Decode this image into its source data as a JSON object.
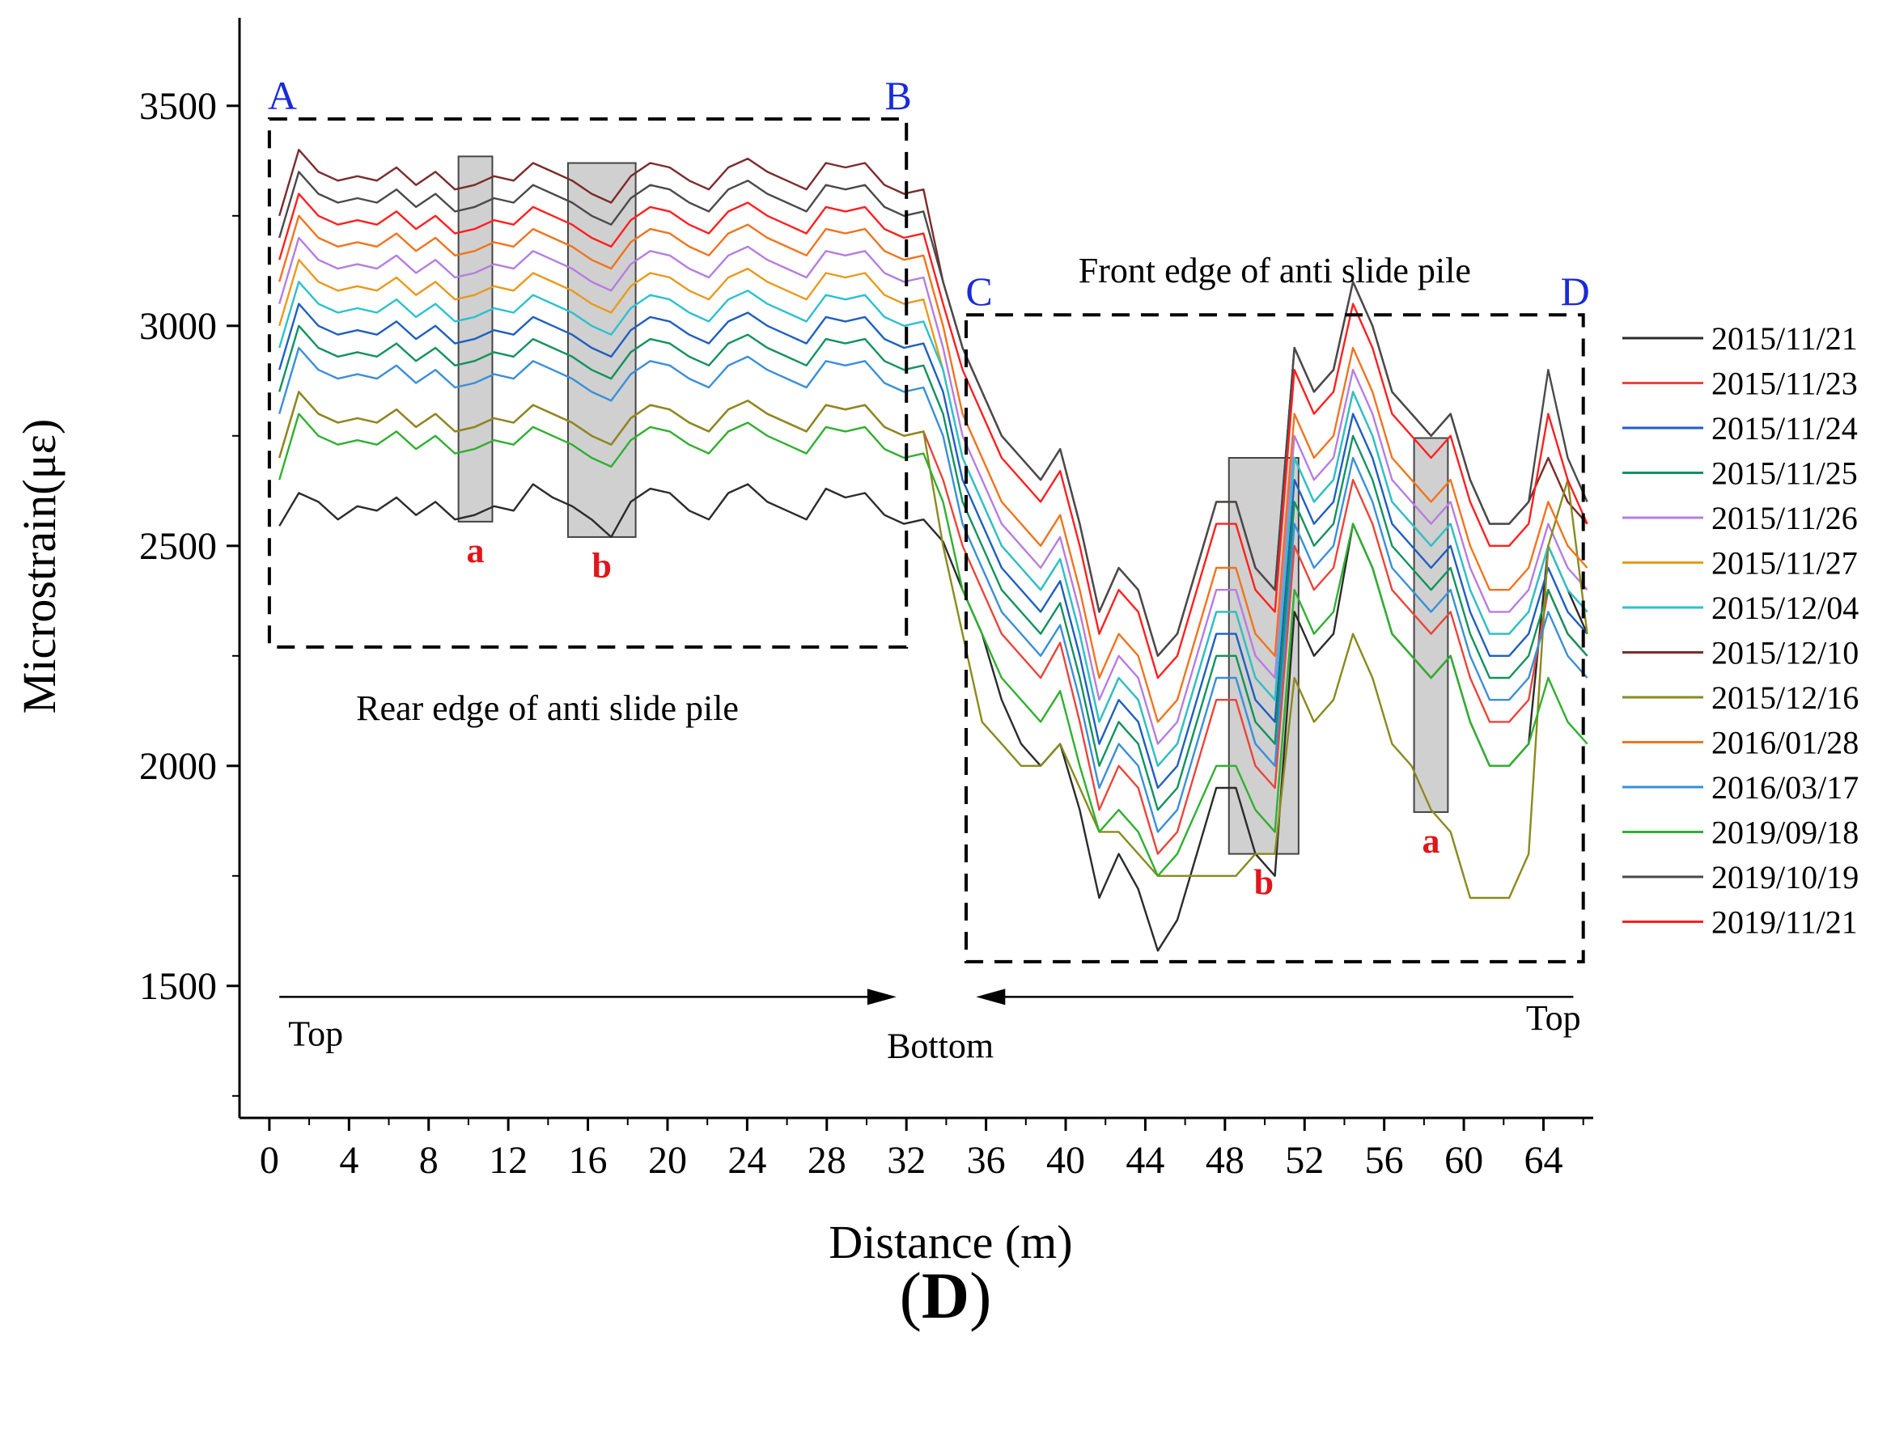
{
  "figure_label": {
    "open": "(",
    "letter": "D",
    "close": ")"
  },
  "chart_data": {
    "type": "line",
    "xlabel": "Distance (m)",
    "ylabel": "Microstrain(με)",
    "xlim": [
      -1.5,
      66.5
    ],
    "ylim": [
      1200,
      3700
    ],
    "xticks": [
      0,
      4,
      8,
      12,
      16,
      20,
      24,
      28,
      32,
      36,
      40,
      44,
      48,
      52,
      56,
      60,
      64
    ],
    "yticks": [
      1500,
      2000,
      2500,
      3000,
      3500
    ],
    "legend_position": "right",
    "regions": [
      {
        "label_left": "A",
        "label_right": "B",
        "x0": 0,
        "x1": 32,
        "y0": 2270,
        "y1": 3470,
        "caption": "Rear edge of anti slide pile"
      },
      {
        "label_left": "C",
        "label_right": "D",
        "x0": 35,
        "x1": 66,
        "y0": 1555,
        "y1": 3025,
        "caption": "Front edge of anti slide pile"
      }
    ],
    "highlights": [
      {
        "label": "a",
        "x0": 9.5,
        "x1": 11.2,
        "y0": 2555,
        "y1": 3385
      },
      {
        "label": "b",
        "x0": 15.0,
        "x1": 18.4,
        "y0": 2520,
        "y1": 3370
      },
      {
        "label": "b",
        "x0": 48.2,
        "x1": 51.7,
        "y0": 1800,
        "y1": 2700
      },
      {
        "label": "a",
        "x0": 57.5,
        "x1": 59.2,
        "y0": 1895,
        "y1": 2745
      }
    ],
    "arrows": [
      {
        "label": "Top",
        "from": 0.5,
        "to": 31.5,
        "y": 1475
      },
      {
        "label": "Bottom",
        "from": 35.5,
        "to": 65.5,
        "y": 1475
      },
      {
        "label": "Top",
        "x": 64.5,
        "y": 1410
      }
    ],
    "series": [
      {
        "name": "2015/11/21",
        "color": "#2b2b2b",
        "values": [
          2545,
          2620,
          2600,
          2560,
          2590,
          2580,
          2610,
          2570,
          2600,
          2560,
          2570,
          2590,
          2580,
          2640,
          2610,
          2590,
          2560,
          2520,
          2600,
          2630,
          2620,
          2580,
          2560,
          2620,
          2640,
          2600,
          2580,
          2560,
          2630,
          2610,
          2620,
          2570,
          2550,
          2560,
          2510,
          2400,
          2300,
          2150,
          2050,
          2000,
          2050,
          1900,
          1700,
          1800,
          1720,
          1580,
          1650,
          1800,
          1950,
          1950,
          1800,
          1750,
          2350,
          2250,
          2300,
          2550,
          2450,
          2300,
          2250,
          2200,
          2250,
          2100,
          2000,
          2000,
          2050,
          2500,
          2400,
          2300
        ]
      },
      {
        "name": "2015/11/23",
        "color": "#e8463b",
        "values": [
          2700,
          2850,
          2800,
          2780,
          2790,
          2780,
          2810,
          2770,
          2800,
          2760,
          2770,
          2790,
          2780,
          2820,
          2800,
          2780,
          2750,
          2730,
          2790,
          2820,
          2810,
          2780,
          2760,
          2810,
          2830,
          2800,
          2780,
          2760,
          2820,
          2810,
          2820,
          2770,
          2750,
          2760,
          2650,
          2500,
          2400,
          2300,
          2250,
          2200,
          2280,
          2100,
          1900,
          2000,
          1950,
          1800,
          1850,
          2000,
          2150,
          2150,
          2000,
          1950,
          2500,
          2400,
          2450,
          2650,
          2550,
          2400,
          2350,
          2300,
          2350,
          2200,
          2100,
          2100,
          2150,
          2400,
          2300,
          2250
        ]
      },
      {
        "name": "2015/11/24",
        "color": "#1f5fbf",
        "values": [
          2900,
          3050,
          3000,
          2980,
          2990,
          2980,
          3010,
          2970,
          3000,
          2960,
          2970,
          2990,
          2980,
          3020,
          3000,
          2980,
          2950,
          2930,
          2990,
          3020,
          3010,
          2980,
          2960,
          3010,
          3030,
          3000,
          2980,
          2960,
          3020,
          3010,
          3020,
          2970,
          2950,
          2960,
          2850,
          2650,
          2550,
          2450,
          2400,
          2350,
          2420,
          2250,
          2050,
          2150,
          2100,
          1950,
          2000,
          2150,
          2300,
          2300,
          2150,
          2100,
          2650,
          2550,
          2600,
          2800,
          2700,
          2550,
          2500,
          2450,
          2500,
          2350,
          2250,
          2250,
          2300,
          2450,
          2350,
          2300
        ]
      },
      {
        "name": "2015/11/25",
        "color": "#12925e",
        "values": [
          2850,
          3000,
          2950,
          2930,
          2940,
          2930,
          2960,
          2920,
          2950,
          2910,
          2920,
          2940,
          2930,
          2970,
          2950,
          2930,
          2900,
          2880,
          2940,
          2970,
          2960,
          2930,
          2910,
          2960,
          2980,
          2950,
          2930,
          2910,
          2970,
          2960,
          2970,
          2920,
          2900,
          2910,
          2800,
          2600,
          2500,
          2400,
          2350,
          2300,
          2370,
          2200,
          2000,
          2100,
          2050,
          1900,
          1950,
          2100,
          2250,
          2250,
          2100,
          2050,
          2600,
          2500,
          2550,
          2750,
          2650,
          2500,
          2450,
          2400,
          2450,
          2300,
          2200,
          2200,
          2250,
          2400,
          2300,
          2250
        ]
      },
      {
        "name": "2015/11/26",
        "color": "#b57ee0",
        "values": [
          3050,
          3200,
          3150,
          3130,
          3140,
          3130,
          3160,
          3120,
          3150,
          3110,
          3120,
          3140,
          3130,
          3170,
          3150,
          3130,
          3100,
          3080,
          3140,
          3170,
          3160,
          3130,
          3110,
          3160,
          3180,
          3150,
          3130,
          3110,
          3170,
          3160,
          3170,
          3120,
          3100,
          3110,
          2950,
          2750,
          2650,
          2550,
          2500,
          2450,
          2520,
          2350,
          2150,
          2250,
          2200,
          2050,
          2100,
          2250,
          2400,
          2400,
          2250,
          2200,
          2750,
          2650,
          2700,
          2900,
          2800,
          2650,
          2600,
          2550,
          2600,
          2450,
          2350,
          2350,
          2400,
          2550,
          2450,
          2400
        ]
      },
      {
        "name": "2015/11/27",
        "color": "#e89a1e",
        "values": [
          3000,
          3150,
          3100,
          3080,
          3090,
          3080,
          3110,
          3070,
          3100,
          3060,
          3070,
          3090,
          3080,
          3120,
          3100,
          3080,
          3050,
          3030,
          3090,
          3120,
          3110,
          3080,
          3060,
          3110,
          3130,
          3100,
          3080,
          3060,
          3120,
          3110,
          3120,
          3070,
          3050,
          3060,
          2900,
          2700,
          2600,
          2500,
          2450,
          2400,
          2470,
          2300,
          2100,
          2200,
          2150,
          2000,
          2050,
          2200,
          2350,
          2350,
          2200,
          2150,
          2700,
          2600,
          2650,
          2850,
          2750,
          2600,
          2550,
          2500,
          2550,
          2400,
          2300,
          2300,
          2350,
          2500,
          2400,
          2350
        ]
      },
      {
        "name": "2015/12/04",
        "color": "#2cc1cf",
        "values": [
          2950,
          3100,
          3050,
          3030,
          3040,
          3030,
          3060,
          3020,
          3050,
          3010,
          3020,
          3040,
          3030,
          3070,
          3050,
          3030,
          3000,
          2980,
          3040,
          3070,
          3060,
          3030,
          3010,
          3060,
          3080,
          3050,
          3030,
          3010,
          3070,
          3060,
          3070,
          3020,
          3000,
          3010,
          2900,
          2700,
          2600,
          2500,
          2450,
          2400,
          2470,
          2300,
          2100,
          2200,
          2150,
          2000,
          2050,
          2200,
          2350,
          2350,
          2200,
          2150,
          2700,
          2600,
          2650,
          2850,
          2750,
          2600,
          2550,
          2500,
          2550,
          2400,
          2300,
          2300,
          2350,
          2500,
          2400,
          2350
        ]
      },
      {
        "name": "2015/12/10",
        "color": "#7b2b2b",
        "values": [
          3250,
          3400,
          3350,
          3330,
          3340,
          3330,
          3360,
          3320,
          3350,
          3310,
          3320,
          3340,
          3330,
          3370,
          3350,
          3330,
          3300,
          3280,
          3340,
          3370,
          3360,
          3330,
          3310,
          3360,
          3380,
          3350,
          3330,
          3310,
          3370,
          3360,
          3370,
          3320,
          3300,
          3310,
          3100,
          2950,
          2850,
          2750,
          2700,
          2650,
          2720,
          2550,
          2350,
          2450,
          2400,
          2250,
          2300,
          2450,
          2600,
          2600,
          2450,
          2400,
          2950,
          2850,
          2900,
          3100,
          3000,
          2850,
          2800,
          2750,
          2800,
          2650,
          2550,
          2550,
          2600,
          2700,
          2600,
          2550
        ]
      },
      {
        "name": "2015/12/16",
        "color": "#8a8a1e",
        "values": [
          2700,
          2850,
          2800,
          2780,
          2790,
          2780,
          2810,
          2770,
          2800,
          2760,
          2770,
          2790,
          2780,
          2820,
          2800,
          2780,
          2750,
          2730,
          2790,
          2820,
          2810,
          2780,
          2760,
          2810,
          2830,
          2800,
          2780,
          2760,
          2820,
          2810,
          2820,
          2770,
          2750,
          2760,
          2500,
          2300,
          2100,
          2050,
          2000,
          2000,
          2050,
          1950,
          1850,
          1850,
          1800,
          1750,
          1750,
          1750,
          1750,
          1750,
          1800,
          1800,
          2200,
          2100,
          2150,
          2300,
          2200,
          2050,
          2000,
          1900,
          1850,
          1700,
          1700,
          1700,
          1800,
          2500,
          2650,
          2300
        ]
      },
      {
        "name": "2016/01/28",
        "color": "#f0741f",
        "values": [
          3100,
          3250,
          3200,
          3180,
          3190,
          3180,
          3210,
          3170,
          3200,
          3160,
          3170,
          3190,
          3180,
          3220,
          3200,
          3180,
          3150,
          3130,
          3190,
          3220,
          3210,
          3180,
          3160,
          3210,
          3230,
          3200,
          3180,
          3160,
          3220,
          3210,
          3220,
          3170,
          3150,
          3160,
          3000,
          2800,
          2700,
          2600,
          2550,
          2500,
          2570,
          2400,
          2200,
          2300,
          2250,
          2100,
          2150,
          2300,
          2450,
          2450,
          2300,
          2250,
          2800,
          2700,
          2750,
          2950,
          2850,
          2700,
          2650,
          2600,
          2650,
          2500,
          2400,
          2400,
          2450,
          2600,
          2500,
          2450
        ]
      },
      {
        "name": "2016/03/17",
        "color": "#3a8fd9",
        "values": [
          2800,
          2950,
          2900,
          2880,
          2890,
          2880,
          2910,
          2870,
          2900,
          2860,
          2870,
          2890,
          2880,
          2920,
          2900,
          2880,
          2850,
          2830,
          2890,
          2920,
          2910,
          2880,
          2860,
          2910,
          2930,
          2900,
          2880,
          2860,
          2920,
          2910,
          2920,
          2870,
          2850,
          2860,
          2750,
          2550,
          2450,
          2350,
          2300,
          2250,
          2320,
          2150,
          1950,
          2050,
          2000,
          1850,
          1900,
          2050,
          2200,
          2200,
          2050,
          2000,
          2550,
          2450,
          2500,
          2700,
          2600,
          2450,
          2400,
          2350,
          2400,
          2250,
          2150,
          2150,
          2200,
          2350,
          2250,
          2200
        ]
      },
      {
        "name": "2019/09/18",
        "color": "#2fb02f",
        "values": [
          2650,
          2800,
          2750,
          2730,
          2740,
          2730,
          2760,
          2720,
          2750,
          2710,
          2720,
          2740,
          2730,
          2770,
          2750,
          2730,
          2700,
          2680,
          2740,
          2770,
          2760,
          2730,
          2710,
          2760,
          2780,
          2750,
          2730,
          2710,
          2770,
          2760,
          2770,
          2720,
          2700,
          2710,
          2600,
          2400,
          2300,
          2200,
          2150,
          2100,
          2170,
          2000,
          1850,
          1900,
          1850,
          1750,
          1800,
          1900,
          2000,
          2000,
          1900,
          1850,
          2400,
          2300,
          2350,
          2550,
          2450,
          2300,
          2250,
          2200,
          2250,
          2100,
          2000,
          2000,
          2050,
          2200,
          2100,
          2050
        ]
      },
      {
        "name": "2019/10/19",
        "color": "#4a4a4a",
        "values": [
          3200,
          3350,
          3300,
          3280,
          3290,
          3280,
          3310,
          3270,
          3300,
          3260,
          3270,
          3290,
          3280,
          3320,
          3300,
          3280,
          3250,
          3230,
          3290,
          3320,
          3310,
          3280,
          3260,
          3310,
          3330,
          3300,
          3280,
          3260,
          3320,
          3310,
          3320,
          3270,
          3250,
          3260,
          3100,
          2950,
          2850,
          2750,
          2700,
          2650,
          2720,
          2550,
          2350,
          2450,
          2400,
          2250,
          2300,
          2450,
          2600,
          2600,
          2450,
          2400,
          2950,
          2850,
          2900,
          3100,
          3000,
          2850,
          2800,
          2750,
          2800,
          2650,
          2550,
          2550,
          2600,
          2900,
          2700,
          2600
        ]
      },
      {
        "name": "2019/11/21",
        "color": "#ff2020",
        "values": [
          3150,
          3300,
          3250,
          3230,
          3240,
          3230,
          3260,
          3220,
          3250,
          3210,
          3220,
          3240,
          3230,
          3270,
          3250,
          3230,
          3200,
          3180,
          3240,
          3270,
          3260,
          3230,
          3210,
          3260,
          3280,
          3250,
          3230,
          3210,
          3270,
          3260,
          3270,
          3220,
          3200,
          3210,
          3050,
          2900,
          2800,
          2700,
          2650,
          2600,
          2670,
          2500,
          2300,
          2400,
          2350,
          2200,
          2250,
          2400,
          2550,
          2550,
          2400,
          2350,
          2900,
          2800,
          2850,
          3050,
          2950,
          2800,
          2750,
          2700,
          2750,
          2600,
          2500,
          2500,
          2550,
          2800,
          2650,
          2550
        ]
      }
    ]
  }
}
